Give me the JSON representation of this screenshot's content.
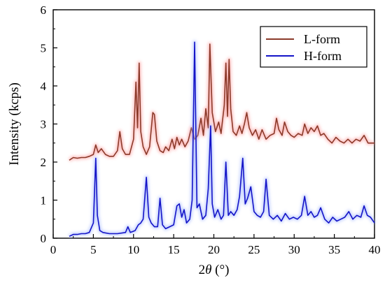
{
  "chart_data": {
    "type": "line",
    "xlabel_prefix": "2",
    "xlabel_theta": "θ",
    "xlabel_suffix": " (°)",
    "ylabel": "Intensity (kcps)",
    "xlim": [
      0,
      40
    ],
    "ylim": [
      0,
      6
    ],
    "x_ticks": [
      0,
      5,
      10,
      15,
      20,
      25,
      30,
      35,
      40
    ],
    "y_ticks": [
      0,
      1,
      2,
      3,
      4,
      5,
      6
    ],
    "grid": false,
    "legend_position": "top-right",
    "series": [
      {
        "name": "L-form",
        "color": "#8B3A2A",
        "glow": "#ff8a8a",
        "x": [
          2.0,
          2.5,
          3.0,
          3.5,
          4.0,
          4.5,
          5.0,
          5.3,
          5.6,
          6.0,
          6.5,
          7.0,
          7.5,
          8.0,
          8.3,
          8.6,
          9.0,
          9.5,
          10.0,
          10.3,
          10.5,
          10.7,
          10.9,
          11.2,
          11.6,
          12.0,
          12.4,
          12.6,
          12.9,
          13.3,
          13.7,
          14.0,
          14.4,
          14.8,
          15.1,
          15.4,
          15.7,
          16.0,
          16.4,
          16.8,
          17.2,
          17.6,
          18.0,
          18.4,
          18.7,
          19.0,
          19.3,
          19.5,
          19.8,
          20.2,
          20.6,
          20.9,
          21.3,
          21.5,
          21.7,
          21.9,
          22.1,
          22.4,
          22.8,
          23.2,
          23.5,
          23.8,
          24.1,
          24.4,
          24.8,
          25.2,
          25.6,
          26.0,
          26.5,
          27.0,
          27.5,
          27.8,
          28.1,
          28.5,
          28.8,
          29.2,
          29.6,
          30.0,
          30.5,
          31.0,
          31.3,
          31.7,
          32.1,
          32.5,
          32.9,
          33.3,
          33.7,
          34.2,
          34.7,
          35.2,
          35.7,
          36.2,
          36.7,
          37.2,
          37.7,
          38.2,
          38.7,
          39.2,
          39.6,
          40.0
        ],
        "y": [
          2.05,
          2.12,
          2.1,
          2.12,
          2.12,
          2.15,
          2.2,
          2.45,
          2.25,
          2.35,
          2.2,
          2.15,
          2.15,
          2.3,
          2.8,
          2.35,
          2.2,
          2.2,
          2.6,
          4.1,
          2.9,
          4.6,
          2.8,
          2.4,
          2.2,
          2.4,
          3.3,
          3.25,
          2.55,
          2.3,
          2.25,
          2.4,
          2.3,
          2.6,
          2.35,
          2.65,
          2.45,
          2.6,
          2.4,
          2.55,
          2.9,
          2.6,
          2.7,
          3.15,
          2.7,
          3.4,
          2.9,
          5.1,
          3.3,
          2.8,
          3.05,
          2.75,
          3.5,
          4.6,
          3.2,
          4.7,
          3.4,
          2.8,
          2.7,
          2.95,
          2.75,
          3.0,
          3.3,
          2.9,
          2.7,
          2.85,
          2.6,
          2.85,
          2.6,
          2.7,
          2.75,
          3.15,
          2.85,
          2.7,
          3.05,
          2.8,
          2.7,
          2.65,
          2.75,
          2.7,
          3.0,
          2.75,
          2.9,
          2.8,
          2.95,
          2.7,
          2.75,
          2.6,
          2.5,
          2.65,
          2.55,
          2.5,
          2.6,
          2.5,
          2.6,
          2.55,
          2.7,
          2.5,
          2.5,
          2.5
        ]
      },
      {
        "name": "H-form",
        "color": "#1414C8",
        "glow": "#8fa8ff",
        "x": [
          2.0,
          2.5,
          3.0,
          3.5,
          4.0,
          4.5,
          5.0,
          5.3,
          5.5,
          5.8,
          6.2,
          7.0,
          8.0,
          9.0,
          9.3,
          9.6,
          10.2,
          10.6,
          10.9,
          11.2,
          11.6,
          11.9,
          12.2,
          12.6,
          13.0,
          13.3,
          13.6,
          14.0,
          14.5,
          15.0,
          15.4,
          15.7,
          16.0,
          16.3,
          16.6,
          17.0,
          17.3,
          17.6,
          17.9,
          18.2,
          18.6,
          19.0,
          19.3,
          19.6,
          19.8,
          20.1,
          20.5,
          20.9,
          21.2,
          21.5,
          21.8,
          22.1,
          22.5,
          22.9,
          23.2,
          23.6,
          23.9,
          24.2,
          24.6,
          25.0,
          25.4,
          25.8,
          26.2,
          26.5,
          26.9,
          27.4,
          27.9,
          28.4,
          28.9,
          29.4,
          29.9,
          30.4,
          30.9,
          31.3,
          31.7,
          32.1,
          32.5,
          32.9,
          33.3,
          33.8,
          34.3,
          34.8,
          35.3,
          35.8,
          36.3,
          36.8,
          37.3,
          37.8,
          38.3,
          38.7,
          39.1,
          39.5,
          40.0
        ],
        "y": [
          0.05,
          0.1,
          0.1,
          0.12,
          0.12,
          0.15,
          0.4,
          2.1,
          0.6,
          0.2,
          0.15,
          0.12,
          0.12,
          0.15,
          0.3,
          0.15,
          0.2,
          0.35,
          0.4,
          0.5,
          1.6,
          0.55,
          0.4,
          0.3,
          0.3,
          1.05,
          0.35,
          0.25,
          0.3,
          0.35,
          0.85,
          0.9,
          0.55,
          0.75,
          0.4,
          0.5,
          1.0,
          5.15,
          0.8,
          0.9,
          0.5,
          0.6,
          1.3,
          2.95,
          0.9,
          0.55,
          0.75,
          0.5,
          0.6,
          2.0,
          0.6,
          0.7,
          0.6,
          0.75,
          1.1,
          2.1,
          0.9,
          1.05,
          1.35,
          0.7,
          0.6,
          0.55,
          0.7,
          1.55,
          0.6,
          0.5,
          0.6,
          0.45,
          0.65,
          0.5,
          0.55,
          0.5,
          0.6,
          1.1,
          0.6,
          0.7,
          0.55,
          0.6,
          0.8,
          0.5,
          0.4,
          0.55,
          0.45,
          0.5,
          0.55,
          0.7,
          0.5,
          0.6,
          0.55,
          0.85,
          0.6,
          0.55,
          0.4
        ]
      }
    ]
  }
}
